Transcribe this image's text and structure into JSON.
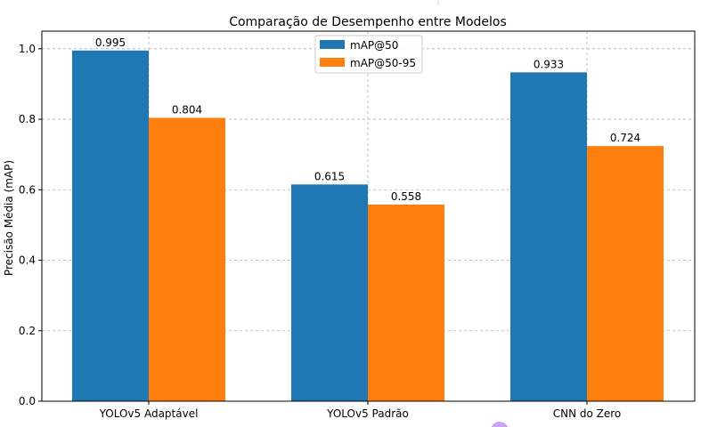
{
  "chart_data": {
    "type": "bar",
    "title": "Comparação de Desempenho entre Modelos",
    "xlabel": "",
    "ylabel": "Precisão Média (mAP)",
    "categories": [
      "YOLOv5 Adaptável",
      "YOLOv5 Padrão",
      "CNN do Zero"
    ],
    "series": [
      {
        "name": "mAP@50",
        "color": "#1f77b4",
        "values": [
          0.995,
          0.615,
          0.933
        ]
      },
      {
        "name": "mAP@50-95",
        "color": "#ff7f0e",
        "values": [
          0.804,
          0.558,
          0.724
        ]
      }
    ],
    "ylim": [
      0,
      1.05
    ],
    "yticks": [
      0.0,
      0.2,
      0.4,
      0.6,
      0.8,
      1.0
    ],
    "ytick_labels": [
      "0.0",
      "0.2",
      "0.4",
      "0.6",
      "0.8",
      "1.0"
    ],
    "value_labels": [
      [
        "0.995",
        "0.615",
        "0.933"
      ],
      [
        "0.804",
        "0.558",
        "0.724"
      ]
    ],
    "grid": true,
    "legend_position": "top-center"
  }
}
